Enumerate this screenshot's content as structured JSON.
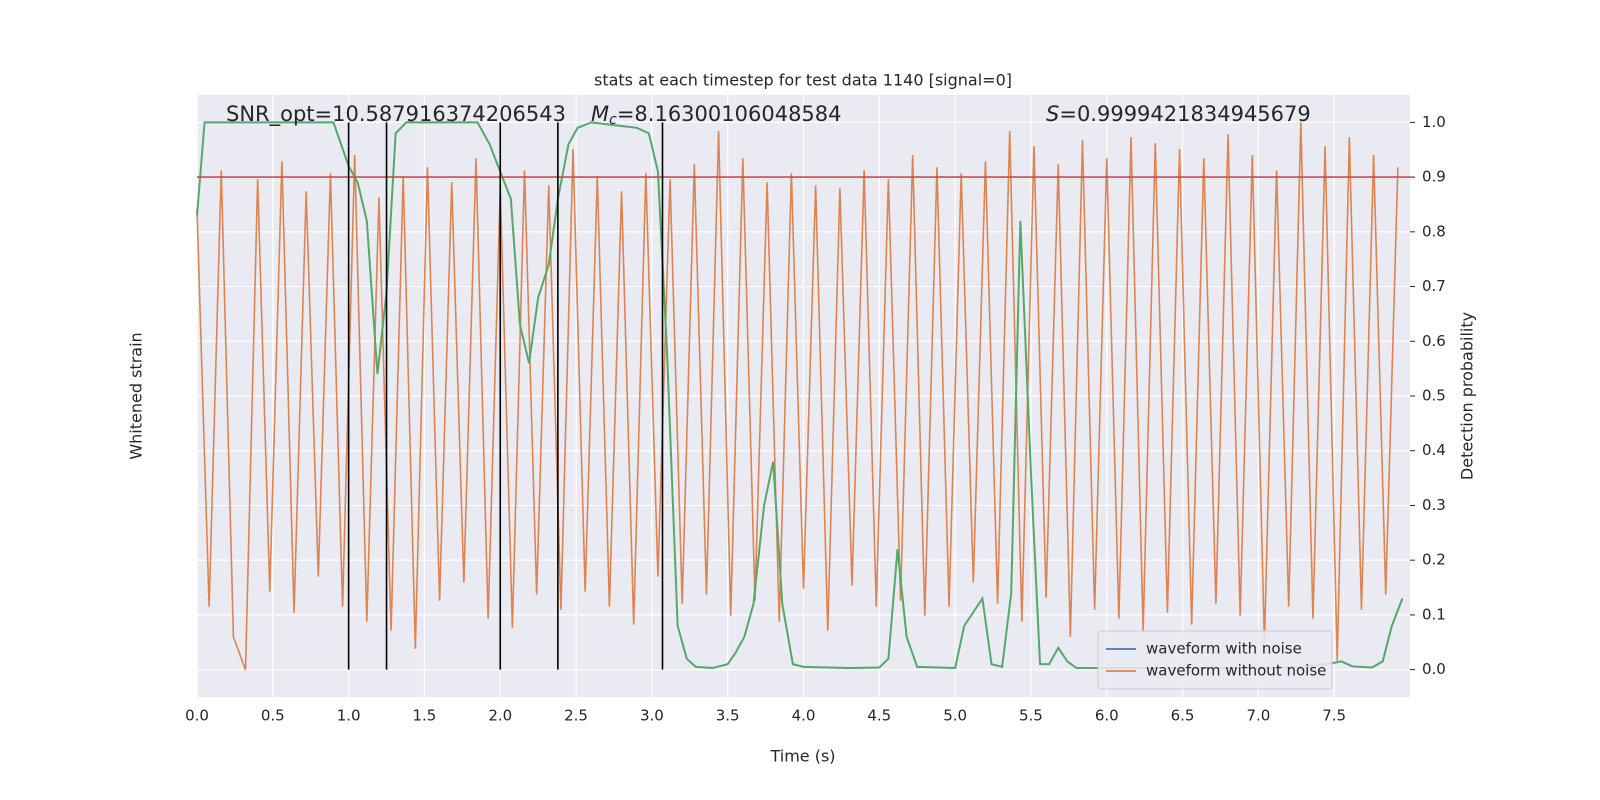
{
  "chart_data": {
    "type": "line",
    "title": "stats at each timestep for test data 1140 [signal=0]",
    "xlabel": "Time (s)",
    "ylabel": "Whitened strain",
    "y2label": "Detection probability",
    "annotations": {
      "snr": "SNR_opt=10.587916374206543",
      "mc_symbol": "M",
      "mc_subscript": "c",
      "mc_value": "=8.16300106048584",
      "s_symbol": "S",
      "s_value": "=0.9999421834945679"
    },
    "xlim": [
      0,
      8
    ],
    "xticks": [
      {
        "value": 0,
        "label": "0.0"
      },
      0.5,
      {
        "value": 1,
        "label": "1.0"
      },
      1.5,
      {
        "value": 2,
        "label": "2.0"
      },
      2.5,
      {
        "value": 3,
        "label": "3.0"
      },
      3.5,
      {
        "value": 4,
        "label": "4.0"
      },
      4.5,
      {
        "value": 5,
        "label": "5.0"
      },
      5.5,
      {
        "value": 6,
        "label": "6.0"
      },
      6.5,
      {
        "value": 7,
        "label": "7.0"
      },
      7.5
    ],
    "ylim": [
      -1,
      1
    ],
    "y2lim": [
      -0.05,
      1.05
    ],
    "y2ticks": [
      {
        "value": 0,
        "label": "0.0"
      },
      0.1,
      0.2,
      0.3,
      0.4,
      0.5,
      0.6,
      0.7,
      0.8,
      0.9,
      {
        "value": 1,
        "label": "1.0"
      }
    ],
    "grid": true,
    "legend": "lower right",
    "threshold": {
      "value": 0.9,
      "color": "#c44e52"
    },
    "vlines": {
      "x": [
        1.0,
        1.25,
        2.0,
        2.38,
        3.07
      ],
      "color": "#000000"
    },
    "series": [
      {
        "name": "waveform with noise",
        "color": "#4c72b0"
      },
      {
        "name": "waveform without noise",
        "color": "#dd8452",
        "x": [
          0,
          0.08,
          0.16,
          0.24,
          0.32,
          0.4,
          0.48,
          0.56,
          0.64,
          0.72,
          0.8,
          0.88,
          0.96,
          1.04,
          1.12,
          1.2,
          1.28,
          1.36,
          1.44,
          1.52,
          1.6,
          1.68,
          1.76,
          1.84,
          1.92,
          2,
          2.08,
          2.16,
          2.24,
          2.32,
          2.4,
          2.48,
          2.56,
          2.64,
          2.72,
          2.8,
          2.88,
          2.96,
          3.04,
          3.12,
          3.2,
          3.28,
          3.36,
          3.44,
          3.52,
          3.6,
          3.68,
          3.76,
          3.84,
          3.92,
          4,
          4.08,
          4.16,
          4.24,
          4.32,
          4.4,
          4.48,
          4.56,
          4.64,
          4.72,
          4.8,
          4.88,
          4.96,
          5.04,
          5.12,
          5.2,
          5.28,
          5.36,
          5.44,
          5.52,
          5.6,
          5.68,
          5.76,
          5.84,
          5.92,
          6,
          6.08,
          6.16,
          6.24,
          6.32,
          6.4,
          6.48,
          6.56,
          6.64,
          6.72,
          6.8,
          6.88,
          6.96,
          7.04,
          7.12,
          7.2,
          7.28,
          7.36,
          7.44,
          7.52,
          7.6,
          7.68,
          7.76,
          7.84,
          7.92
        ],
        "values": [
          0.62,
          -0.7,
          0.75,
          -0.8,
          -0.91,
          0.72,
          -0.65,
          0.78,
          -0.72,
          0.68,
          -0.6,
          0.74,
          -0.7,
          0.8,
          -0.75,
          0.66,
          -0.78,
          0.73,
          -0.84,
          0.76,
          -0.68,
          0.71,
          -0.62,
          0.79,
          -0.74,
          0.69,
          -0.77,
          0.75,
          -0.66,
          0.7,
          -0.71,
          0.82,
          -0.65,
          0.73,
          -0.7,
          0.68,
          -0.76,
          0.74,
          -0.6,
          0.72,
          -0.69,
          0.77,
          -0.66,
          0.88,
          -0.73,
          0.79,
          -0.68,
          0.71,
          -0.75,
          0.74,
          -0.64,
          0.7,
          -0.78,
          0.69,
          -0.63,
          0.75,
          -0.7,
          0.72,
          -0.68,
          0.8,
          -0.73,
          0.76,
          -0.7,
          0.74,
          -0.62,
          0.78,
          -0.69,
          0.88,
          -0.75,
          0.83,
          -0.67,
          0.77,
          -0.8,
          0.85,
          -0.71,
          0.79,
          -0.74,
          0.86,
          -0.78,
          0.84,
          -0.72,
          0.82,
          -0.76,
          0.79,
          -0.69,
          0.87,
          -0.73,
          0.8,
          -0.82,
          0.75,
          -0.7,
          0.91,
          -0.74,
          0.83,
          -0.88,
          0.86,
          -0.71,
          0.8,
          -0.66,
          0.76
        ]
      },
      {
        "color": "#55a868",
        "axis": "y2",
        "x": [
          0,
          0.05,
          0.15,
          0.5,
          0.9,
          1.0,
          1.06,
          1.12,
          1.19,
          1.25,
          1.31,
          1.38,
          1.5,
          1.85,
          1.93,
          2.0,
          2.07,
          2.13,
          2.19,
          2.25,
          2.32,
          2.38,
          2.45,
          2.51,
          2.6,
          2.9,
          2.98,
          3.04,
          3.1,
          3.17,
          3.23,
          3.29,
          3.4,
          3.5,
          3.55,
          3.61,
          3.67,
          3.74,
          3.8,
          3.86,
          3.93,
          4.0,
          4.3,
          4.5,
          4.56,
          4.62,
          4.68,
          4.75,
          5.0,
          5.06,
          5.18,
          5.24,
          5.31,
          5.37,
          5.43,
          5.5,
          5.56,
          5.62,
          5.68,
          5.74,
          5.8,
          6.0,
          7.0,
          7.3,
          7.45,
          7.55,
          7.62,
          7.75,
          7.82,
          7.88,
          7.95
        ],
        "values": [
          0.83,
          1.0,
          1.0,
          1.0,
          1.0,
          0.92,
          0.89,
          0.82,
          0.54,
          0.69,
          0.98,
          1.0,
          1.0,
          1.0,
          0.96,
          0.91,
          0.86,
          0.63,
          0.56,
          0.68,
          0.74,
          0.86,
          0.96,
          0.99,
          1.0,
          0.99,
          0.98,
          0.91,
          0.58,
          0.08,
          0.02,
          0.005,
          0.003,
          0.01,
          0.03,
          0.06,
          0.12,
          0.3,
          0.38,
          0.12,
          0.01,
          0.005,
          0.003,
          0.004,
          0.02,
          0.22,
          0.06,
          0.005,
          0.003,
          0.08,
          0.13,
          0.01,
          0.005,
          0.14,
          0.82,
          0.36,
          0.01,
          0.01,
          0.04,
          0.015,
          0.003,
          0.003,
          0.003,
          0.005,
          0.01,
          0.015,
          0.006,
          0.004,
          0.015,
          0.08,
          0.13
        ]
      }
    ]
  }
}
